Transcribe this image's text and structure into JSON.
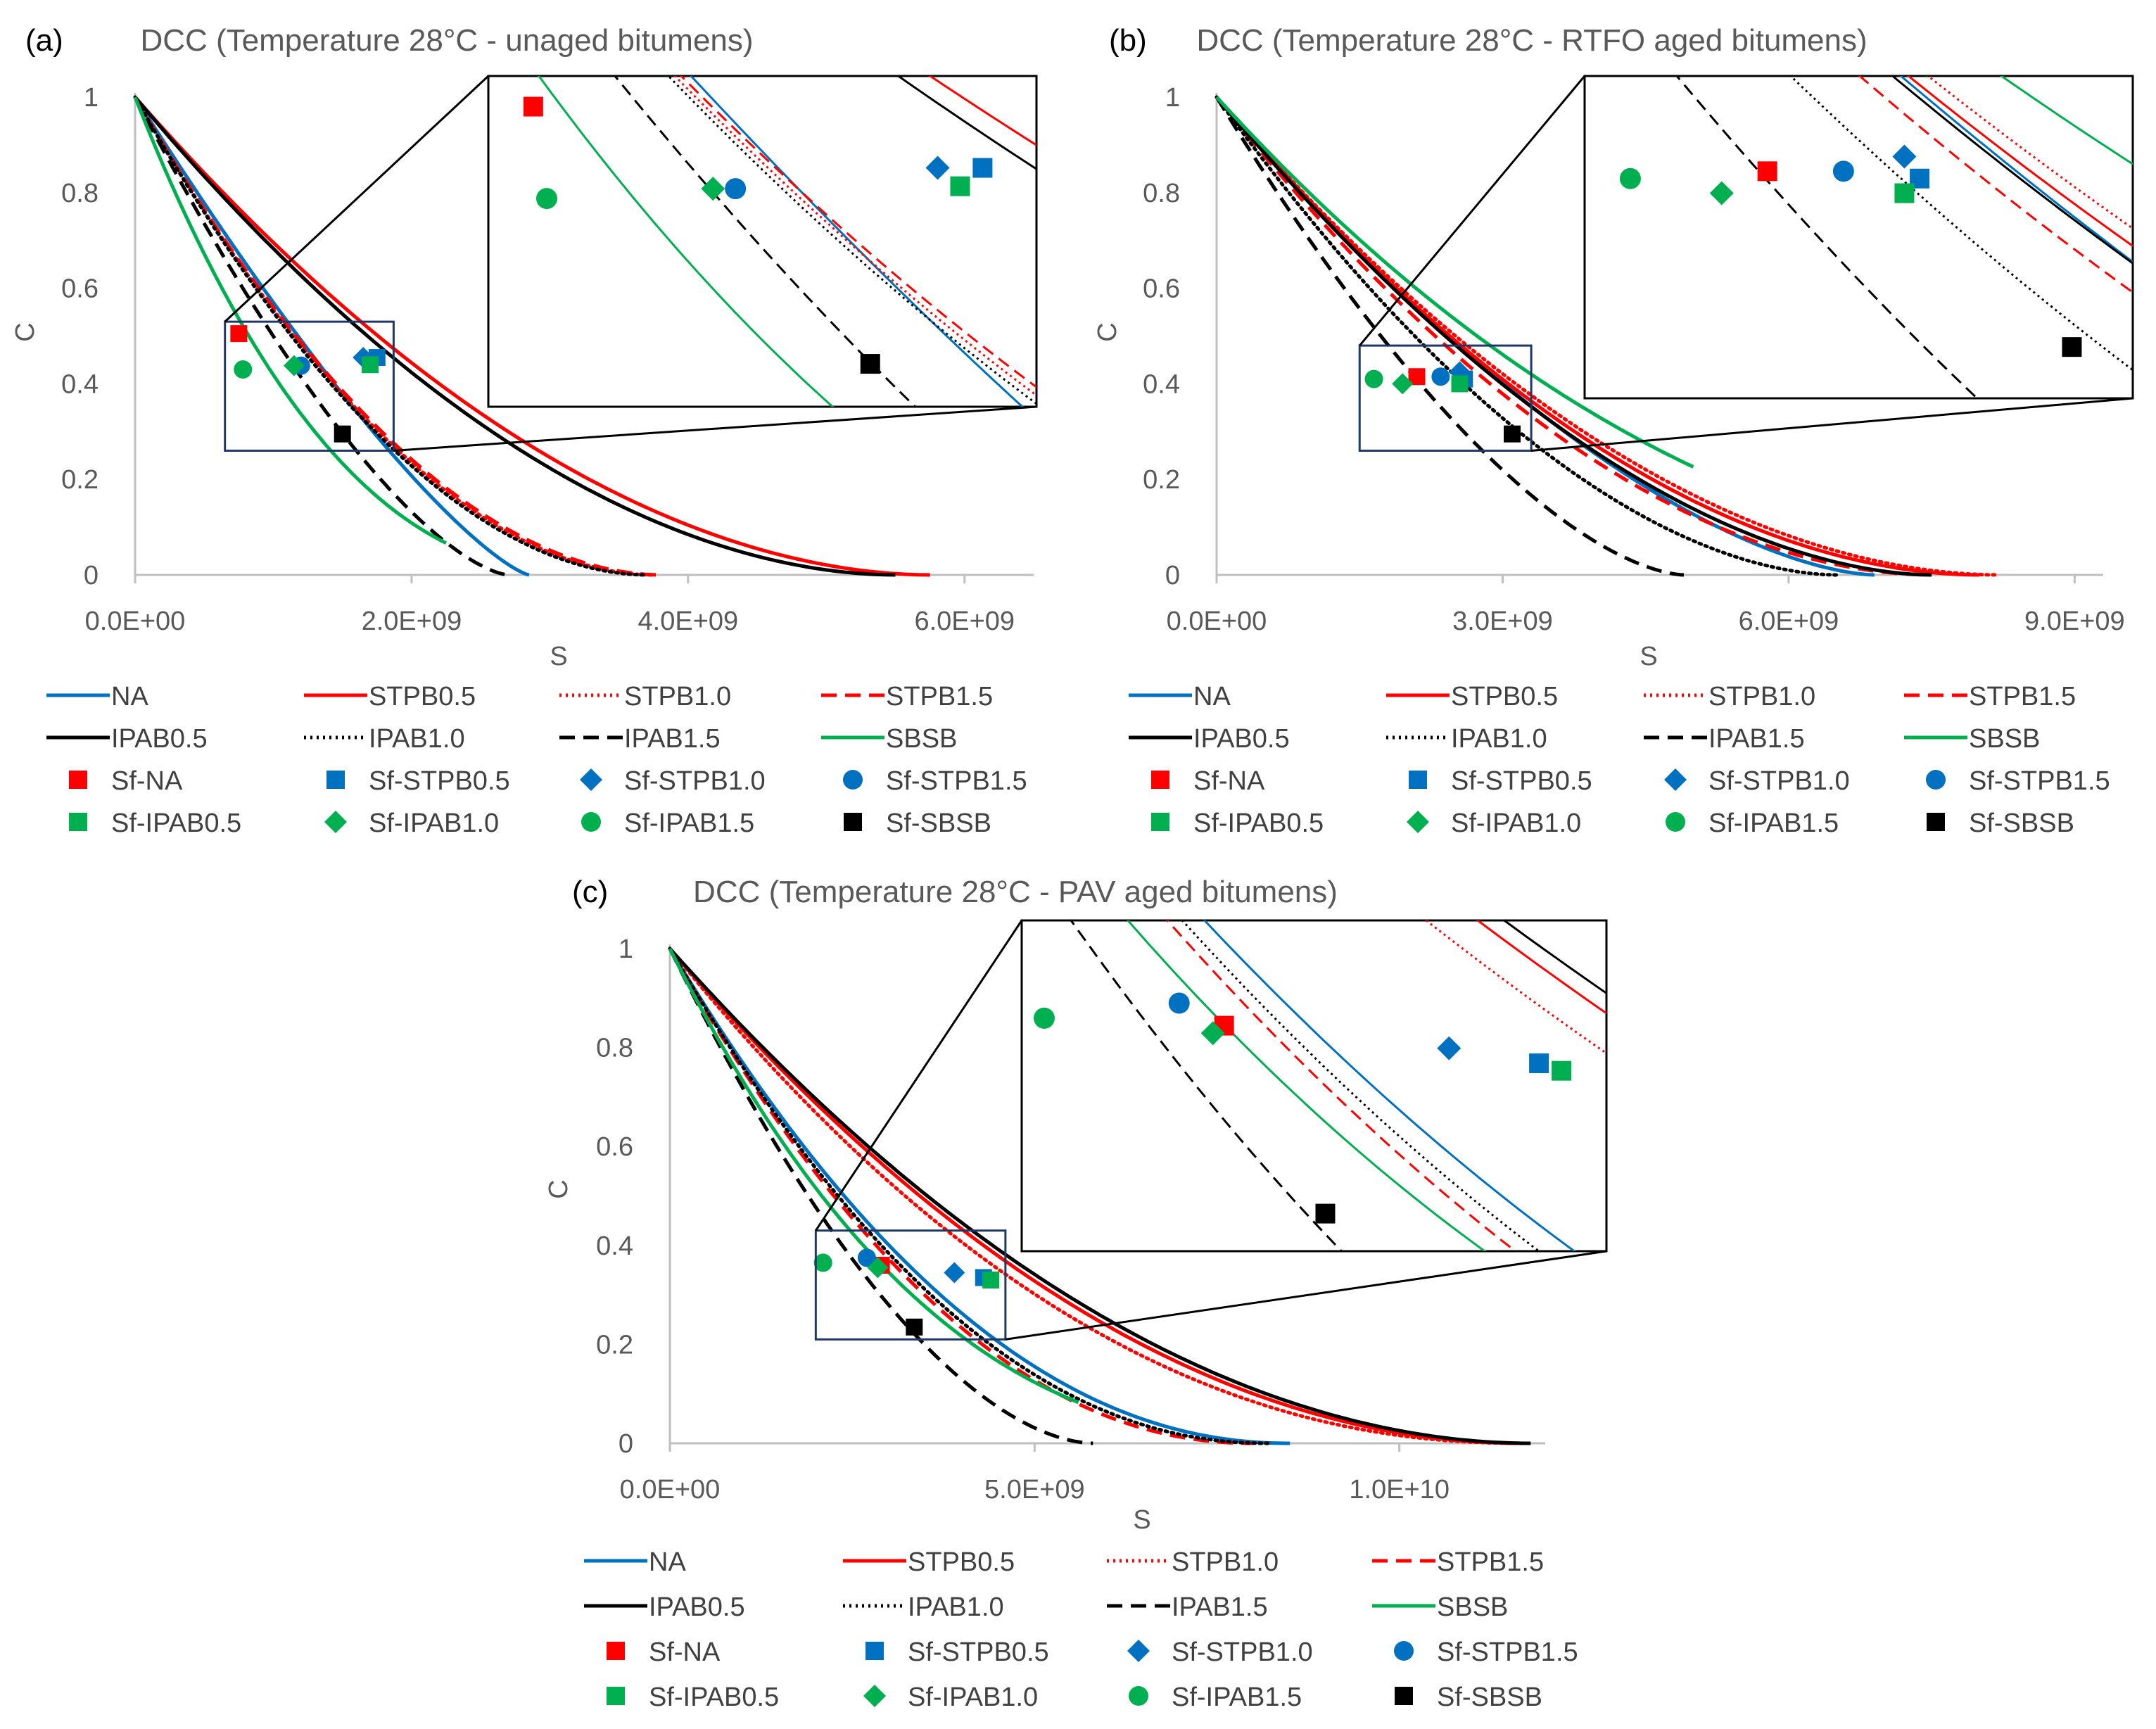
{
  "colors": {
    "blue": "#0070C0",
    "red": "#FF0000",
    "black": "#000000",
    "green": "#00B050",
    "axis": "#BFBFBF",
    "zoom": "#1F3864"
  },
  "chart_data": [
    {
      "panel_label": "(a)",
      "type": "line",
      "title": "DCC (Temperature 28°C - unaged bitumens)",
      "xlabel": "S",
      "ylabel": "C",
      "xlim": [
        0,
        6500000000.0
      ],
      "ylim": [
        0,
        1
      ],
      "xticks": [
        0,
        2000000000.0,
        4000000000.0,
        6000000000.0
      ],
      "xtick_labels": [
        "0.0E+00",
        "2.0E+09",
        "4.0E+09",
        "6.0E+09"
      ],
      "yticks": [
        0,
        0.2,
        0.4,
        0.6,
        0.8,
        1
      ],
      "ytick_labels": [
        "0",
        "0.2",
        "0.4",
        "0.6",
        "0.8",
        "1"
      ],
      "zoom_box": {
        "x": [
          650000000.0,
          1870000000.0
        ],
        "y": [
          0.26,
          0.53
        ]
      },
      "series": [
        {
          "name": "NA",
          "color": "#0070C0",
          "dash": "solid",
          "x_end": 2850000000.0,
          "shape": 1.3
        },
        {
          "name": "STPB0.5",
          "color": "#FF0000",
          "dash": "solid",
          "x_end": 5750000000.0,
          "shape": 1.9
        },
        {
          "name": "STPB1.0",
          "color": "#FF0000",
          "dash": "dot",
          "x_end": 3750000000.0,
          "shape": 1.9
        },
        {
          "name": "STPB1.5",
          "color": "#FF0000",
          "dash": "dash",
          "x_end": 3800000000.0,
          "shape": 1.9
        },
        {
          "name": "IPAB0.5",
          "color": "#000000",
          "dash": "solid",
          "x_end": 5500000000.0,
          "shape": 1.9
        },
        {
          "name": "IPAB1.0",
          "color": "#000000",
          "dash": "dot",
          "x_end": 3700000000.0,
          "shape": 1.9
        },
        {
          "name": "IPAB1.5",
          "color": "#000000",
          "dash": "dash",
          "x_end": 2700000000.0,
          "shape": 1.5
        },
        {
          "name": "SBSB",
          "color": "#00B050",
          "dash": "solid",
          "x_end": 3400000000.0,
          "shape": 2.5,
          "x_stop": 2250000000.0
        }
      ],
      "failure_points": [
        {
          "name": "Sf-NA",
          "x": 750000000.0,
          "y": 0.505
        },
        {
          "name": "Sf-STPB0.5",
          "x": 1750000000.0,
          "y": 0.455
        },
        {
          "name": "Sf-STPB1.0",
          "x": 1650000000.0,
          "y": 0.455
        },
        {
          "name": "Sf-STPB1.5",
          "x": 1200000000.0,
          "y": 0.438
        },
        {
          "name": "Sf-IPAB0.5",
          "x": 1700000000.0,
          "y": 0.44
        },
        {
          "name": "Sf-IPAB1.0",
          "x": 1150000000.0,
          "y": 0.438
        },
        {
          "name": "Sf-IPAB1.5",
          "x": 780000000.0,
          "y": 0.43
        },
        {
          "name": "Sf-SBSB",
          "x": 1500000000.0,
          "y": 0.295
        }
      ]
    },
    {
      "panel_label": "(b)",
      "type": "line",
      "title": "DCC (Temperature 28°C - RTFO aged bitumens)",
      "xlabel": "S",
      "ylabel": "C",
      "xlim": [
        0,
        9300000000.0
      ],
      "ylim": [
        0,
        1
      ],
      "xticks": [
        0,
        3000000000.0,
        6000000000.0,
        9000000000.0
      ],
      "xtick_labels": [
        "0.0E+00",
        "3.0E+09",
        "6.0E+09",
        "9.0E+09"
      ],
      "yticks": [
        0,
        0.2,
        0.4,
        0.6,
        0.8,
        1
      ],
      "ytick_labels": [
        "0",
        "0.2",
        "0.4",
        "0.6",
        "0.8",
        "1"
      ],
      "zoom_box": {
        "x": [
          1500000000.0,
          3300000000.0
        ],
        "y": [
          0.26,
          0.48
        ]
      },
      "series": [
        {
          "name": "NA",
          "color": "#0070C0",
          "dash": "solid",
          "x_end": 6900000000.0,
          "shape": 1.6
        },
        {
          "name": "STPB0.5",
          "color": "#FF0000",
          "dash": "solid",
          "x_end": 8000000000.0,
          "shape": 1.9
        },
        {
          "name": "STPB1.0",
          "color": "#FF0000",
          "dash": "dot",
          "x_end": 8200000000.0,
          "shape": 1.9
        },
        {
          "name": "STPB1.5",
          "color": "#FF0000",
          "dash": "dash",
          "x_end": 7500000000.0,
          "shape": 1.9
        },
        {
          "name": "IPAB0.5",
          "color": "#000000",
          "dash": "solid",
          "x_end": 7500000000.0,
          "shape": 1.8
        },
        {
          "name": "IPAB1.0",
          "color": "#000000",
          "dash": "dot",
          "x_end": 6500000000.0,
          "shape": 1.8
        },
        {
          "name": "IPAB1.5",
          "color": "#000000",
          "dash": "dash",
          "x_end": 4900000000.0,
          "shape": 1.6
        },
        {
          "name": "SBSB",
          "color": "#00B050",
          "dash": "solid",
          "x_end": 10500000000.0,
          "shape": 2.3,
          "x_stop": 5000000000.0
        }
      ],
      "failure_points": [
        {
          "name": "Sf-NA",
          "x": 2100000000.0,
          "y": 0.415
        },
        {
          "name": "Sf-STPB0.5",
          "x": 2600000000.0,
          "y": 0.41
        },
        {
          "name": "Sf-STPB1.0",
          "x": 2550000000.0,
          "y": 0.425
        },
        {
          "name": "Sf-STPB1.5",
          "x": 2350000000.0,
          "y": 0.415
        },
        {
          "name": "Sf-IPAB0.5",
          "x": 2550000000.0,
          "y": 0.4
        },
        {
          "name": "Sf-IPAB1.0",
          "x": 1950000000.0,
          "y": 0.4
        },
        {
          "name": "Sf-IPAB1.5",
          "x": 1650000000.0,
          "y": 0.41
        },
        {
          "name": "Sf-SBSB",
          "x": 3100000000.0,
          "y": 0.295
        }
      ]
    },
    {
      "panel_label": "(c)",
      "type": "line",
      "title": "DCC (Temperature 28°C - PAV aged bitumens)",
      "xlabel": "S",
      "ylabel": "C",
      "xlim": [
        0,
        12000000000.0
      ],
      "ylim": [
        0,
        1
      ],
      "xticks": [
        0,
        5000000000.0,
        10000000000.0
      ],
      "xtick_labels": [
        "0.0E+00",
        "5.0E+09",
        "1.0E+10"
      ],
      "yticks": [
        0,
        0.2,
        0.4,
        0.6,
        0.8,
        1
      ],
      "ytick_labels": [
        "0",
        "0.2",
        "0.4",
        "0.6",
        "0.8",
        "1"
      ],
      "zoom_box": {
        "x": [
          2000000000.0,
          4600000000.0
        ],
        "y": [
          0.21,
          0.43
        ]
      },
      "series": [
        {
          "name": "NA",
          "color": "#0070C0",
          "dash": "solid",
          "x_end": 8500000000.0,
          "shape": 2.1
        },
        {
          "name": "STPB0.5",
          "color": "#FF0000",
          "dash": "solid",
          "x_end": 11700000000.0,
          "shape": 2.0
        },
        {
          "name": "STPB1.0",
          "color": "#FF0000",
          "dash": "dot",
          "x_end": 11700000000.0,
          "shape": 2.15
        },
        {
          "name": "STPB1.5",
          "color": "#FF0000",
          "dash": "dash",
          "x_end": 8000000000.0,
          "shape": 2.1
        },
        {
          "name": "IPAB0.5",
          "color": "#000000",
          "dash": "solid",
          "x_end": 11800000000.0,
          "shape": 1.95
        },
        {
          "name": "IPAB1.0",
          "color": "#000000",
          "dash": "dot",
          "x_end": 8200000000.0,
          "shape": 2.1
        },
        {
          "name": "IPAB1.5",
          "color": "#000000",
          "dash": "dash",
          "x_end": 5800000000.0,
          "shape": 1.75
        },
        {
          "name": "SBSB",
          "color": "#00B050",
          "dash": "solid",
          "x_end": 9500000000.0,
          "shape": 2.8,
          "x_stop": 5600000000.0
        }
      ],
      "failure_points": [
        {
          "name": "Sf-NA",
          "x": 2900000000.0,
          "y": 0.36
        },
        {
          "name": "Sf-STPB0.5",
          "x": 4300000000.0,
          "y": 0.335
        },
        {
          "name": "Sf-STPB1.0",
          "x": 3900000000.0,
          "y": 0.345
        },
        {
          "name": "Sf-STPB1.5",
          "x": 2700000000.0,
          "y": 0.375
        },
        {
          "name": "Sf-IPAB0.5",
          "x": 4400000000.0,
          "y": 0.33
        },
        {
          "name": "Sf-IPAB1.0",
          "x": 2850000000.0,
          "y": 0.355
        },
        {
          "name": "Sf-IPAB1.5",
          "x": 2100000000.0,
          "y": 0.365
        },
        {
          "name": "Sf-SBSB",
          "x": 3350000000.0,
          "y": 0.235
        }
      ]
    }
  ],
  "legend": {
    "lines": [
      "NA",
      "STPB0.5",
      "STPB1.0",
      "STPB1.5",
      "IPAB0.5",
      "IPAB1.0",
      "IPAB1.5",
      "SBSB"
    ],
    "markers": [
      "Sf-NA",
      "Sf-STPB0.5",
      "Sf-STPB1.0",
      "Sf-STPB1.5",
      "Sf-IPAB0.5",
      "Sf-IPAB1.0",
      "Sf-IPAB1.5",
      "Sf-SBSB"
    ]
  }
}
